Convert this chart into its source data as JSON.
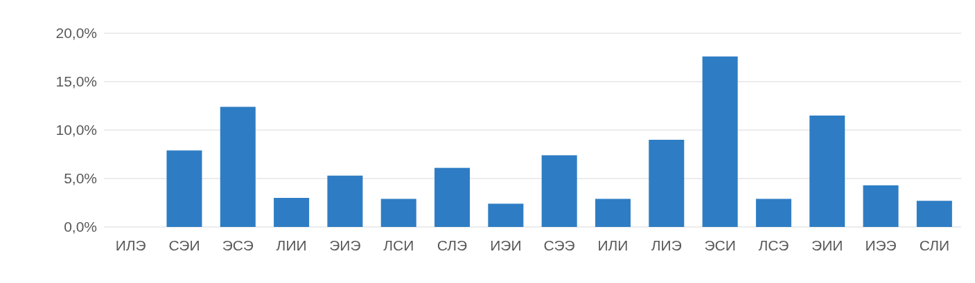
{
  "chart_data": {
    "type": "bar",
    "categories": [
      "ИЛЭ",
      "СЭИ",
      "ЭСЭ",
      "ЛИИ",
      "ЭИЭ",
      "ЛСИ",
      "СЛЭ",
      "ИЭИ",
      "СЭЭ",
      "ИЛИ",
      "ЛИЭ",
      "ЭСИ",
      "ЛСЭ",
      "ЭИИ",
      "ИЭЭ",
      "СЛИ"
    ],
    "values": [
      0,
      7.9,
      12.4,
      3.0,
      5.3,
      2.9,
      6.1,
      2.4,
      7.4,
      2.9,
      9.0,
      17.6,
      2.9,
      11.5,
      4.3,
      2.7
    ],
    "color": "#2e7dc4",
    "ylim": [
      0,
      20
    ],
    "yticks": [
      {
        "value": 0,
        "label": "0,0%"
      },
      {
        "value": 5,
        "label": "5,0%"
      },
      {
        "value": 10,
        "label": "10,0%"
      },
      {
        "value": 15,
        "label": "15,0%"
      },
      {
        "value": 20,
        "label": "20,0%"
      }
    ],
    "grid": "y"
  }
}
